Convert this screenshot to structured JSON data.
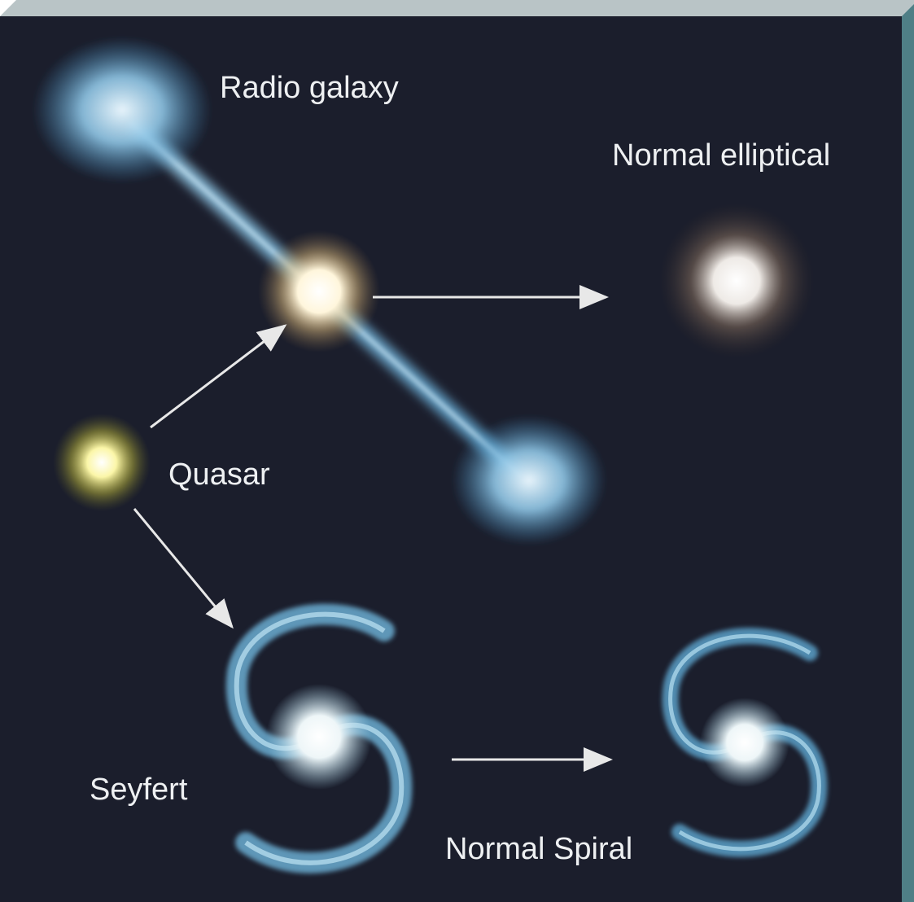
{
  "nodes": [
    {
      "label": "Radio galaxy"
    },
    {
      "label": "Normal elliptical"
    },
    {
      "label": "Quasar"
    },
    {
      "label": "Seyfert"
    },
    {
      "label": "Normal Spiral"
    }
  ]
}
